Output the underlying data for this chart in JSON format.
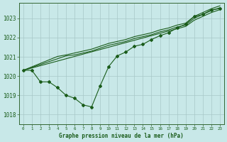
{
  "title": "Graphe pression niveau de la mer (hPa)",
  "bg_color": "#c8e8e8",
  "grid_color": "#a8c8c8",
  "line_color": "#1a5c1a",
  "xlim": [
    -0.5,
    23.5
  ],
  "ylim": [
    1017.5,
    1023.8
  ],
  "yticks": [
    1018,
    1019,
    1020,
    1021,
    1022,
    1023
  ],
  "xticks": [
    0,
    1,
    2,
    3,
    4,
    5,
    6,
    7,
    8,
    9,
    10,
    11,
    12,
    13,
    14,
    15,
    16,
    17,
    18,
    19,
    20,
    21,
    22,
    23
  ],
  "line_main": [
    1020.3,
    1020.3,
    1019.7,
    1019.7,
    1019.4,
    1019.0,
    1018.85,
    1018.5,
    1018.4,
    1019.5,
    1020.5,
    1021.05,
    1021.25,
    1021.55,
    1021.65,
    1021.9,
    1022.1,
    1022.25,
    1022.5,
    1022.7,
    1023.1,
    1023.2,
    1023.45,
    1023.5
  ],
  "line_a": [
    1020.3,
    1020.42,
    1020.54,
    1020.66,
    1020.78,
    1020.9,
    1021.02,
    1021.14,
    1021.26,
    1021.38,
    1021.5,
    1021.62,
    1021.74,
    1021.86,
    1021.98,
    1022.1,
    1022.22,
    1022.34,
    1022.46,
    1022.58,
    1022.9,
    1023.1,
    1023.3,
    1023.45
  ],
  "line_b": [
    1020.3,
    1020.45,
    1020.6,
    1020.75,
    1020.9,
    1021.05,
    1021.1,
    1021.2,
    1021.3,
    1021.45,
    1021.6,
    1021.7,
    1021.8,
    1021.95,
    1022.05,
    1022.15,
    1022.3,
    1022.4,
    1022.55,
    1022.65,
    1023.0,
    1023.2,
    1023.4,
    1023.55
  ],
  "line_c": [
    1020.3,
    1020.48,
    1020.66,
    1020.84,
    1021.02,
    1021.1,
    1021.2,
    1021.3,
    1021.4,
    1021.55,
    1021.7,
    1021.8,
    1021.9,
    1022.05,
    1022.15,
    1022.25,
    1022.4,
    1022.5,
    1022.65,
    1022.75,
    1023.1,
    1023.3,
    1023.5,
    1023.65
  ]
}
